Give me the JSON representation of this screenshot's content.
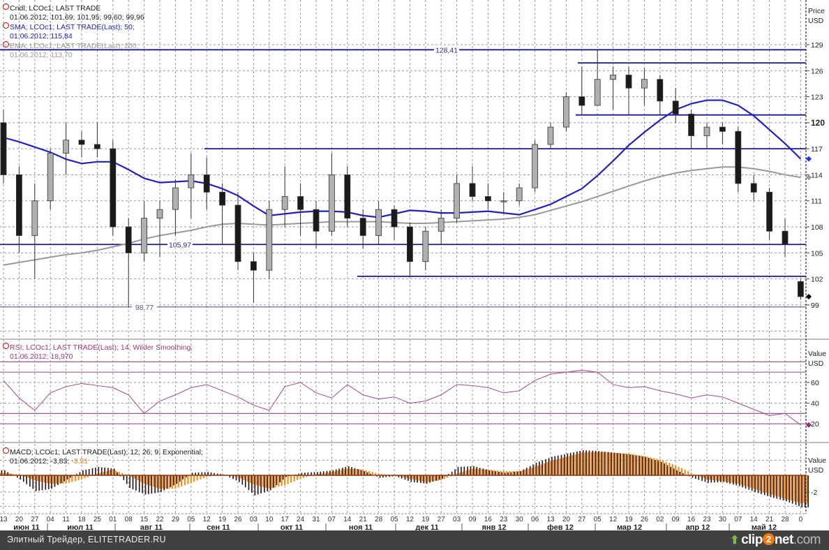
{
  "legend": {
    "candles_title": "Cndl; LCOc1; LAST TRADE",
    "candles_values": "01.06.2012; 101,69; 101,95; 99,60; 99,96",
    "sma_title": "SMA; LCOc1; LAST TRADE(Last);  50;",
    "sma_values": "01.06.2012; 115,84",
    "ema_title": "EMA; LCOc1; LAST TRADE(Last);  200;",
    "ema_values": "01.06.2012; 113,70",
    "rsi_title": "RSI; LCOc1; LAST TRADE(Last);  14; Wilder Smoothing;",
    "rsi_values": "01.06.2012; 18,970",
    "macd_title": "MACD; LCOc1; LAST TRADE(Last);  12; 26; 9; Exponential;",
    "macd_values_a": "01.06.2012; -3,83;",
    "macd_values_b": "-3,31"
  },
  "axes": {
    "price_title": "Price",
    "price_unit": "USD",
    "rsi_title": "Value",
    "rsi_unit": "USD",
    "macd_title": "Value",
    "macd_unit": "USD"
  },
  "footer": {
    "source": "Элитный Трейдер, ELITETRADER.RU",
    "logo_clip": "clip",
    "logo_two": "2",
    "logo_net": "net",
    "logo_com": ".com"
  },
  "colors": {
    "sma": "#2222bb",
    "ema": "#999999",
    "levels": "#1a1a8c",
    "rsi": "#a04a8a",
    "rsi_levels": "#a05a8a",
    "macd": "#2a0f0f",
    "signal": "#f0901e",
    "up_candle": "#b0b0b0",
    "down_candle": "#1a1a1a",
    "footer_bg": "#414141"
  },
  "chart_data": [
    {
      "type": "candlestick",
      "panel": "price",
      "ylabel": "Price USD",
      "ylim": [
        95,
        131
      ],
      "yticks": [
        99,
        102,
        105,
        108,
        111,
        114,
        117,
        120,
        123,
        126,
        129
      ],
      "ytick_labels": [
        "99",
        "102",
        "105",
        "108",
        "111",
        "114",
        "117",
        "120",
        "123",
        "126",
        "129"
      ],
      "x_tick_labels": [
        "13",
        "20",
        "27",
        "04",
        "11",
        "18",
        "25",
        "01",
        "08",
        "15",
        "22",
        "29",
        "05",
        "12",
        "19",
        "26",
        "03",
        "10",
        "17",
        "24",
        "31",
        "07",
        "14",
        "21",
        "28",
        "05",
        "12",
        "19",
        "27",
        "03",
        "09",
        "16",
        "23",
        "30",
        "06",
        "13",
        "20",
        "27",
        "05",
        "12",
        "19",
        "26",
        "02",
        "09",
        "16",
        "23",
        "30",
        "07",
        "14",
        "21",
        "28",
        "0"
      ],
      "months": [
        "июн 11",
        "июл 11",
        "авг 11",
        "сен 11",
        "окт 11",
        "ноя 11",
        "дек 11",
        "янв 12",
        "фев 12",
        "мар 12",
        "апр 12",
        "май 12"
      ],
      "grid": true,
      "ohlc": [
        [
          120,
          121.5,
          113,
          114
        ],
        [
          114,
          115,
          105,
          107
        ],
        [
          107,
          113,
          102,
          111
        ],
        [
          111,
          117,
          110,
          116.5
        ],
        [
          116.5,
          120,
          114,
          118
        ],
        [
          118,
          119,
          116,
          117.5
        ],
        [
          117.5,
          120,
          116,
          117
        ],
        [
          117,
          118,
          107,
          108
        ],
        [
          108,
          109,
          98.77,
          105
        ],
        [
          105,
          111,
          104,
          109
        ],
        [
          109,
          111,
          104.5,
          110
        ],
        [
          110,
          113.5,
          107,
          112.5
        ],
        [
          112.5,
          116.5,
          109,
          114
        ],
        [
          114,
          116,
          110,
          112
        ],
        [
          112,
          113,
          106,
          110.5
        ],
        [
          110.5,
          112,
          103,
          104
        ],
        [
          104,
          105,
          99.3,
          103
        ],
        [
          103,
          111,
          102,
          110
        ],
        [
          110,
          115,
          108,
          111.5
        ],
        [
          111.5,
          113,
          107,
          110
        ],
        [
          110,
          111,
          105.5,
          107.5
        ],
        [
          107.5,
          116.5,
          107,
          114
        ],
        [
          114,
          115,
          108,
          109
        ],
        [
          109,
          110,
          105.5,
          107
        ],
        [
          107,
          111,
          106,
          110
        ],
        [
          110,
          110.5,
          106.5,
          108
        ],
        [
          108,
          108.5,
          102.2,
          104
        ],
        [
          104,
          108,
          103,
          107.5
        ],
        [
          107.5,
          110,
          106,
          109
        ],
        [
          109,
          114,
          108.5,
          113
        ],
        [
          113,
          115,
          111,
          111.5
        ],
        [
          111.5,
          113,
          110,
          111
        ],
        [
          111,
          112,
          109.5,
          111
        ],
        [
          111,
          113,
          110.5,
          112.5
        ],
        [
          112.5,
          118,
          112,
          117.5
        ],
        [
          117.5,
          120,
          117,
          119.5
        ],
        [
          119.5,
          123.5,
          119,
          123
        ],
        [
          123,
          126.5,
          121,
          122
        ],
        [
          122,
          128.41,
          122,
          125
        ],
        [
          125,
          126.5,
          121.5,
          125.5
        ],
        [
          125.5,
          126.5,
          121,
          124
        ],
        [
          124,
          126.3,
          122,
          125
        ],
        [
          125,
          125.5,
          121,
          122.5
        ],
        [
          122.5,
          124,
          120,
          121
        ],
        [
          121,
          121.5,
          117,
          118.5
        ],
        [
          118.5,
          120,
          117,
          119.5
        ],
        [
          119.5,
          120,
          117.5,
          119
        ],
        [
          119,
          119.5,
          112,
          113
        ],
        [
          113,
          114,
          111,
          112
        ],
        [
          112,
          112.5,
          106.5,
          107.5
        ],
        [
          107.5,
          109,
          104.5,
          106
        ],
        [
          101.69,
          101.95,
          99.6,
          99.96
        ]
      ],
      "series": [
        {
          "name": "SMA 50",
          "values": [
            118.3,
            117.8,
            117.2,
            116.6,
            115.8,
            115.3,
            115.5,
            115.5,
            114.6,
            113.6,
            113.1,
            113.2,
            113.3,
            113.0,
            112.4,
            111.6,
            110.4,
            109.3,
            109.5,
            109.7,
            109.8,
            109.8,
            109.7,
            109.3,
            109.1,
            109.5,
            109.9,
            109.8,
            109.6,
            109.6,
            109.7,
            109.8,
            109.6,
            109.4,
            110.0,
            110.6,
            111.5,
            112.4,
            113.9,
            115.6,
            117.4,
            118.9,
            120.3,
            121.5,
            122.2,
            122.6,
            122.6,
            122.0,
            120.8,
            119.2,
            117.6,
            115.84
          ]
        },
        {
          "name": "EMA 200",
          "values": [
            103.6,
            103.9,
            104.2,
            104.5,
            104.8,
            105,
            105.3,
            105.7,
            106.1,
            106.6,
            107,
            107.3,
            107.6,
            108,
            108.3,
            108.4,
            108.3,
            108.2,
            108.3,
            108.4,
            108.5,
            108.6,
            108.6,
            108.6,
            108.6,
            108.5,
            108.4,
            108.4,
            108.5,
            108.6,
            108.7,
            108.8,
            108.9,
            109.1,
            109.4,
            109.9,
            110.4,
            110.9,
            111.5,
            112.1,
            112.7,
            113.3,
            113.8,
            114.2,
            114.5,
            114.7,
            114.9,
            114.9,
            114.7,
            114.4,
            114.0,
            113.7
          ]
        }
      ],
      "levels": [
        {
          "value": 128.41,
          "label": "128,41"
        },
        {
          "value": 126.9
        },
        {
          "value": 120.9
        },
        {
          "value": 117.0
        },
        {
          "value": 105.97,
          "label": "105,97"
        },
        {
          "value": 102.3
        },
        {
          "value": 98.77,
          "label": "98,77"
        }
      ]
    },
    {
      "type": "line",
      "panel": "rsi",
      "ylabel": "Value USD",
      "ylim": [
        10,
        90
      ],
      "yticks": [
        20,
        40,
        60
      ],
      "ytick_labels": [
        "20",
        "40",
        "60"
      ],
      "levels": [
        80,
        70,
        30,
        20
      ],
      "values": [
        62,
        45,
        33,
        50,
        56,
        59,
        57,
        55,
        48,
        30,
        42,
        48,
        55,
        58,
        52,
        46,
        38,
        33,
        56,
        60,
        50,
        45,
        58,
        48,
        44,
        46,
        40,
        42,
        48,
        58,
        57,
        55,
        50,
        52,
        62,
        68,
        70,
        72,
        70,
        58,
        55,
        56,
        52,
        49,
        45,
        48,
        46,
        40,
        34,
        28,
        30,
        18.97
      ]
    },
    {
      "type": "bar",
      "panel": "macd",
      "ylabel": "Value USD",
      "ylim": [
        -4.5,
        3.9
      ],
      "yticks": [
        -2
      ],
      "ytick_labels": [
        "-2"
      ],
      "series": [
        {
          "name": "MACD",
          "values": [
            0.6,
            -0.5,
            -1.9,
            -1.6,
            -0.5,
            0.6,
            1.0,
            0.8,
            -1.5,
            -2.3,
            -2.0,
            -1.0,
            0.3,
            0.4,
            0.1,
            -0.8,
            -2.4,
            -1.8,
            -0.2,
            0.3,
            0.4,
            0.6,
            1.1,
            0.5,
            -0.3,
            -0.1,
            -0.8,
            -1.0,
            -0.4,
            1.0,
            1.1,
            0.6,
            0.3,
            0.5,
            1.5,
            2.2,
            2.6,
            3.0,
            2.9,
            2.7,
            2.5,
            2.2,
            1.6,
            0.6,
            -0.3,
            -0.9,
            -0.8,
            -1.3,
            -2.0,
            -2.6,
            -3.1,
            -3.83
          ]
        },
        {
          "name": "Signal",
          "values": [
            0.3,
            0.1,
            -0.6,
            -1.0,
            -1.0,
            -0.5,
            0.2,
            0.7,
            0.0,
            -1.0,
            -1.6,
            -1.6,
            -0.9,
            -0.2,
            0.1,
            -0.2,
            -1.1,
            -1.6,
            -1.2,
            -0.4,
            0.1,
            0.4,
            0.8,
            0.7,
            0.2,
            0.0,
            -0.4,
            -0.8,
            -0.6,
            0.2,
            0.8,
            0.7,
            0.5,
            0.5,
            1.0,
            1.7,
            2.2,
            2.7,
            2.8,
            2.7,
            2.6,
            2.3,
            1.9,
            1.2,
            0.3,
            -0.5,
            -0.7,
            -1.0,
            -1.6,
            -2.2,
            -2.8,
            -3.31
          ]
        }
      ]
    }
  ]
}
